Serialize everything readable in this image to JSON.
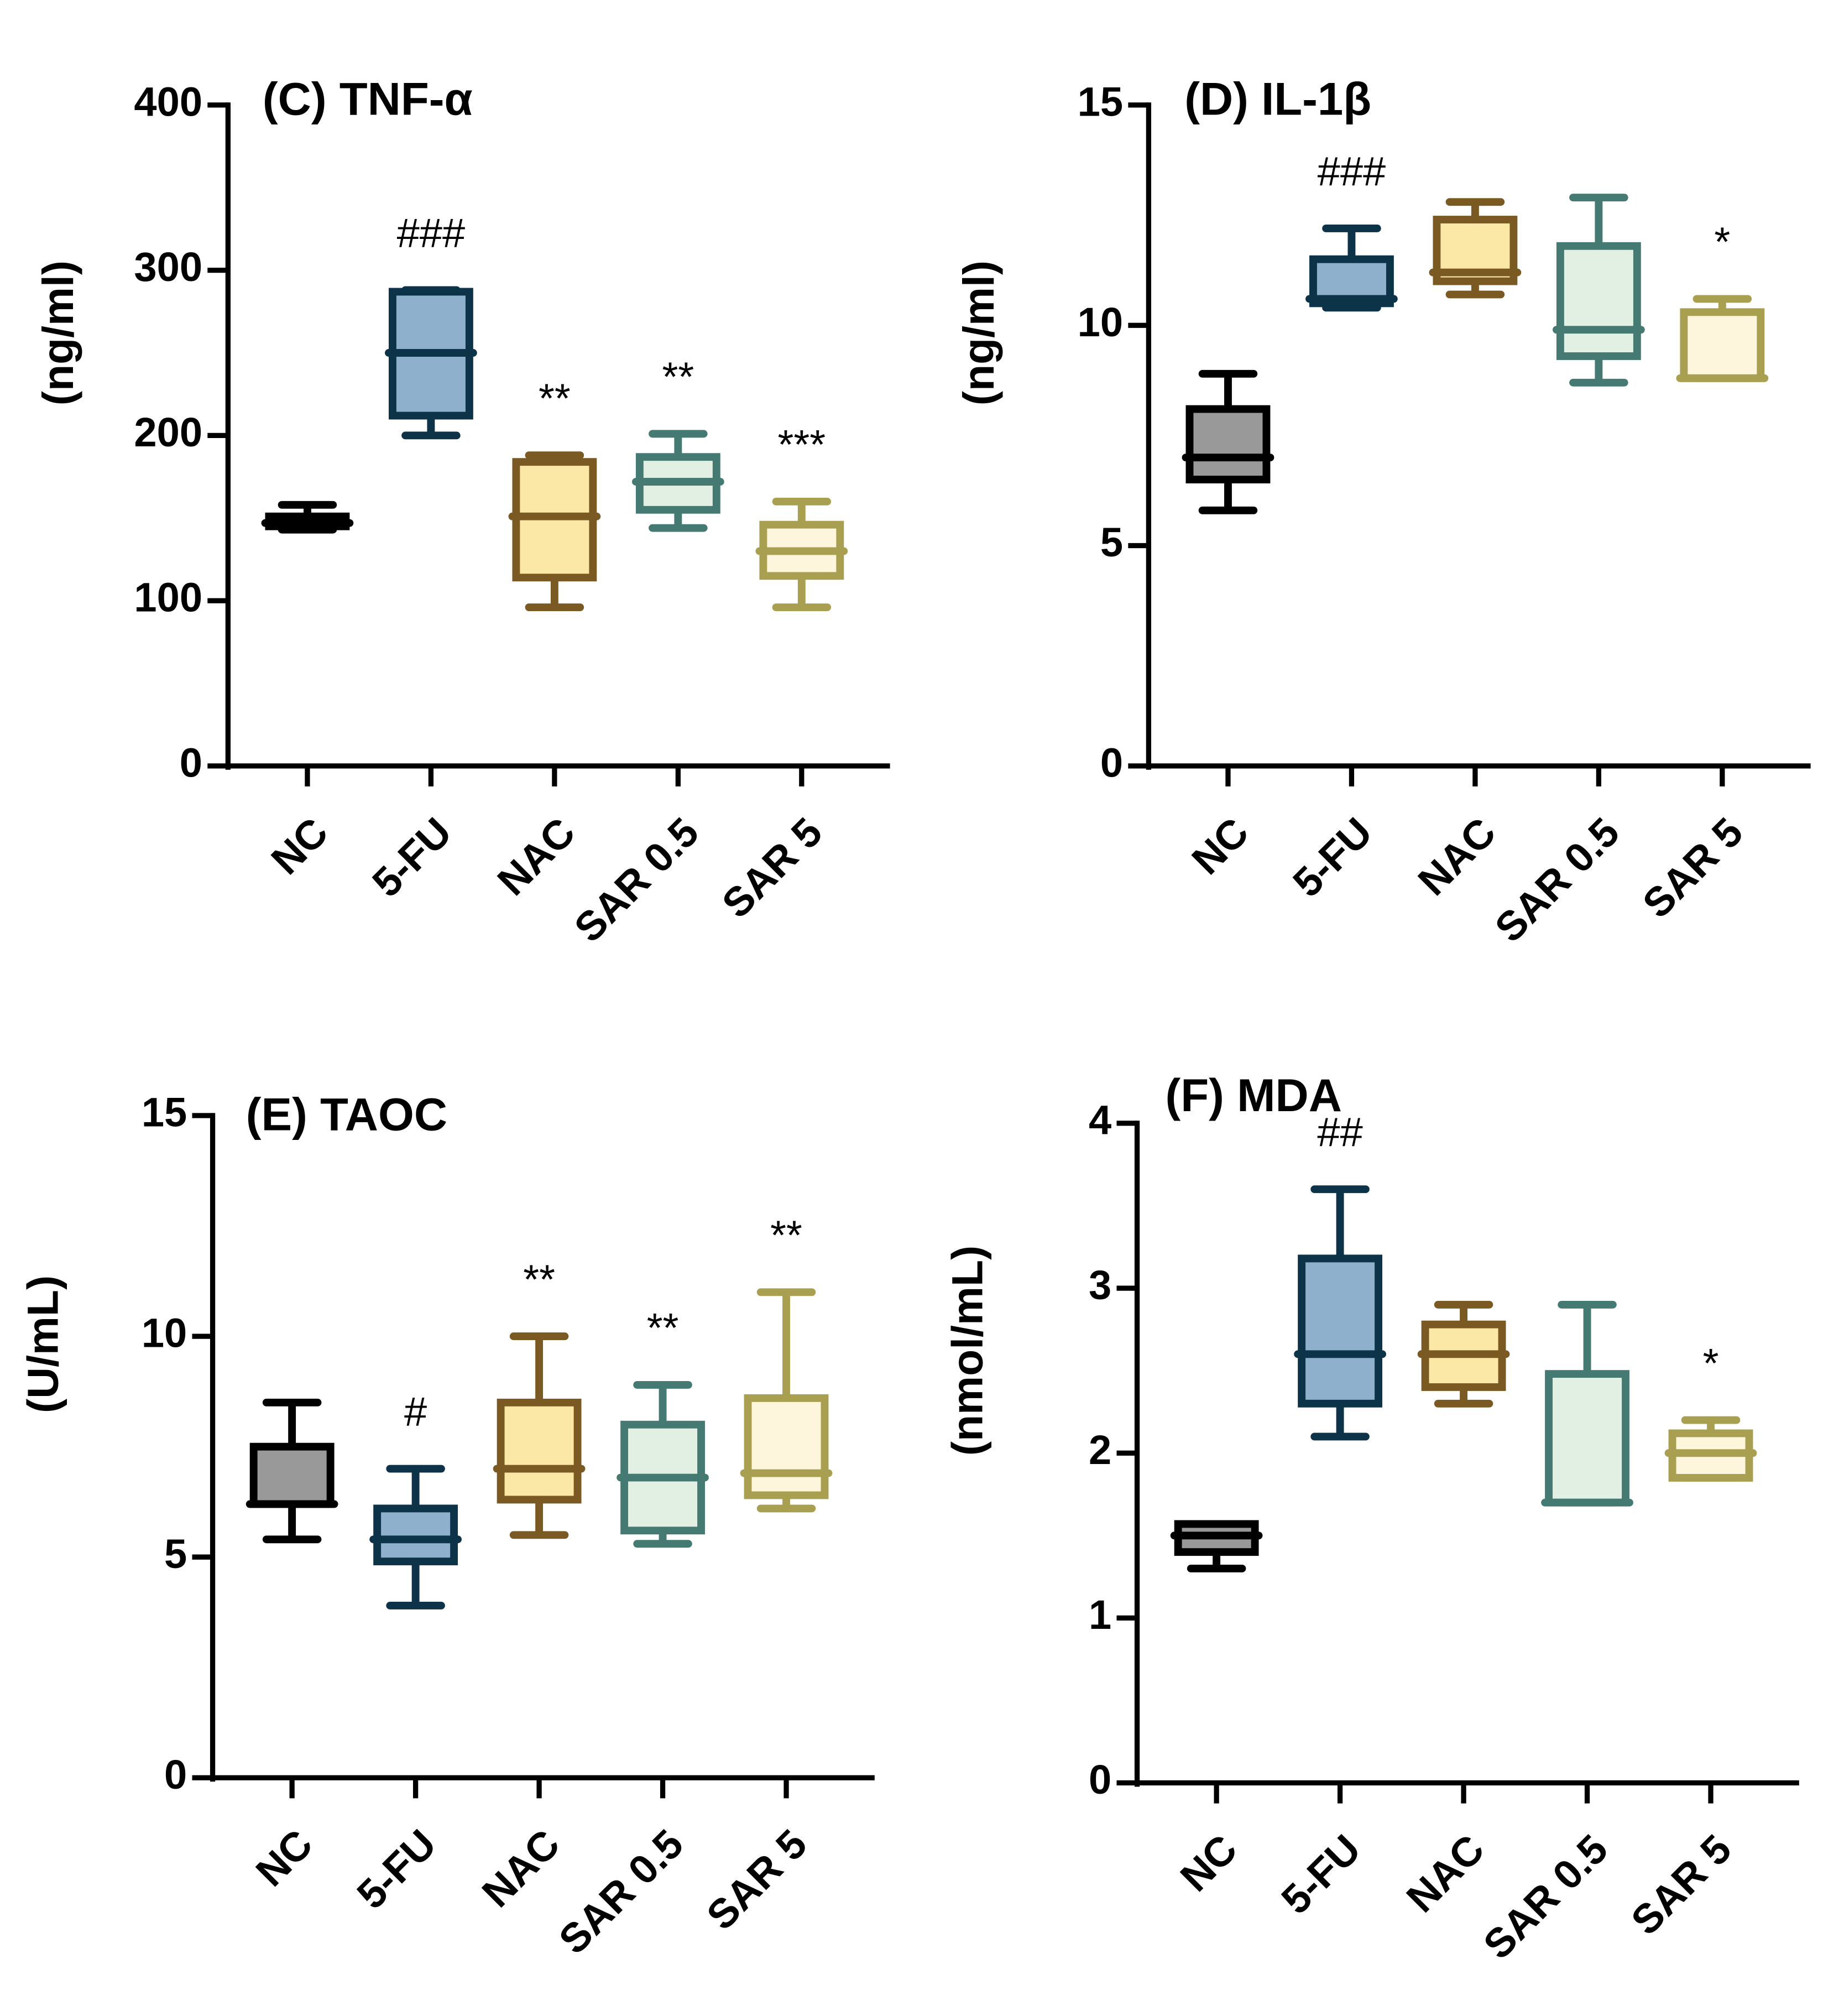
{
  "chart_data": [
    {
      "type": "box",
      "title": "(C) TNF-α",
      "ylabel": "(ng/ml)",
      "categories": [
        "NC",
        "5-FU",
        "NAC",
        "SAR 0.5",
        "SAR 5"
      ],
      "ylim": [
        0,
        400
      ],
      "yticks": [
        0,
        100,
        200,
        300,
        400
      ],
      "boxes": [
        {
          "min": 143,
          "q1": 145,
          "median": 147,
          "q3": 151,
          "max": 158
        },
        {
          "min": 200,
          "q1": 212,
          "median": 250,
          "q3": 287,
          "max": 288
        },
        {
          "min": 96,
          "q1": 114,
          "median": 151,
          "q3": 184,
          "max": 188
        },
        {
          "min": 144,
          "q1": 155,
          "median": 172,
          "q3": 187,
          "max": 201
        },
        {
          "min": 96,
          "q1": 115,
          "median": 130,
          "q3": 146,
          "max": 160
        }
      ],
      "annotations": [
        null,
        "###",
        "**",
        "**",
        "***"
      ],
      "fills": [
        "#999999",
        "#8fb0cc",
        "#fce8a6",
        "#e2f0e4",
        "#fdf6dc"
      ],
      "strokes": [
        "#000000",
        "#0d3349",
        "#7a5a22",
        "#447a72",
        "#a8a050"
      ]
    },
    {
      "type": "box",
      "title": "(D) IL-1β",
      "ylabel": "(ng/ml)",
      "categories": [
        "NC",
        "5-FU",
        "NAC",
        "SAR 0.5",
        "SAR 5"
      ],
      "ylim": [
        0,
        15
      ],
      "yticks": [
        0,
        5,
        10,
        15
      ],
      "boxes": [
        {
          "min": 5.8,
          "q1": 6.5,
          "median": 7.0,
          "q3": 8.1,
          "max": 8.9
        },
        {
          "min": 10.4,
          "q1": 10.5,
          "median": 10.6,
          "q3": 11.5,
          "max": 12.2
        },
        {
          "min": 10.7,
          "q1": 11.0,
          "median": 11.2,
          "q3": 12.4,
          "max": 12.8
        },
        {
          "min": 8.7,
          "q1": 9.3,
          "median": 9.9,
          "q3": 11.8,
          "max": 12.9
        },
        {
          "min": 8.8,
          "q1": 8.8,
          "median": 8.8,
          "q3": 10.3,
          "max": 10.6
        }
      ],
      "annotations": [
        null,
        "###",
        null,
        null,
        "*"
      ],
      "fills": [
        "#999999",
        "#8fb0cc",
        "#fce8a6",
        "#e2f0e4",
        "#fdf6dc"
      ],
      "strokes": [
        "#000000",
        "#0d3349",
        "#7a5a22",
        "#447a72",
        "#a8a050"
      ]
    },
    {
      "type": "box",
      "title": "(E) TAOC",
      "ylabel": "(U/mL)",
      "categories": [
        "NC",
        "5-FU",
        "NAC",
        "SAR 0.5",
        "SAR 5"
      ],
      "ylim": [
        0,
        15
      ],
      "yticks": [
        0,
        5,
        10,
        15
      ],
      "boxes": [
        {
          "min": 5.4,
          "q1": 6.2,
          "median": 6.2,
          "q3": 7.5,
          "max": 8.5
        },
        {
          "min": 3.9,
          "q1": 4.9,
          "median": 5.4,
          "q3": 6.1,
          "max": 7.0
        },
        {
          "min": 5.5,
          "q1": 6.3,
          "median": 7.0,
          "q3": 8.5,
          "max": 10.0
        },
        {
          "min": 5.3,
          "q1": 5.6,
          "median": 6.8,
          "q3": 8.0,
          "max": 8.9
        },
        {
          "min": 6.1,
          "q1": 6.4,
          "median": 6.9,
          "q3": 8.6,
          "max": 11.0
        }
      ],
      "annotations": [
        null,
        "#",
        "**",
        "**",
        "**"
      ],
      "fills": [
        "#999999",
        "#8fb0cc",
        "#fce8a6",
        "#e2f0e4",
        "#fdf6dc"
      ],
      "strokes": [
        "#000000",
        "#0d3349",
        "#7a5a22",
        "#447a72",
        "#a8a050"
      ]
    },
    {
      "type": "box",
      "title": "(F) MDA",
      "ylabel": "(nmol/mL)",
      "categories": [
        "NC",
        "5-FU",
        "NAC",
        "SAR 0.5",
        "SAR 5"
      ],
      "ylim": [
        0,
        4
      ],
      "yticks": [
        0,
        1,
        2,
        3,
        4
      ],
      "boxes": [
        {
          "min": 1.3,
          "q1": 1.4,
          "median": 1.5,
          "q3": 1.57,
          "max": 1.57
        },
        {
          "min": 2.1,
          "q1": 2.3,
          "median": 2.6,
          "q3": 3.18,
          "max": 3.6
        },
        {
          "min": 2.3,
          "q1": 2.4,
          "median": 2.6,
          "q3": 2.78,
          "max": 2.9
        },
        {
          "min": 1.7,
          "q1": 1.7,
          "median": 1.7,
          "q3": 2.48,
          "max": 2.9
        },
        {
          "min": 1.85,
          "q1": 1.85,
          "median": 2.0,
          "q3": 2.12,
          "max": 2.2
        }
      ],
      "annotations": [
        null,
        "##",
        null,
        null,
        "*"
      ],
      "fills": [
        "#999999",
        "#8fb0cc",
        "#fce8a6",
        "#e2f0e4",
        "#fdf6dc"
      ],
      "strokes": [
        "#000000",
        "#0d3349",
        "#7a5a22",
        "#447a72",
        "#a8a050"
      ]
    }
  ]
}
